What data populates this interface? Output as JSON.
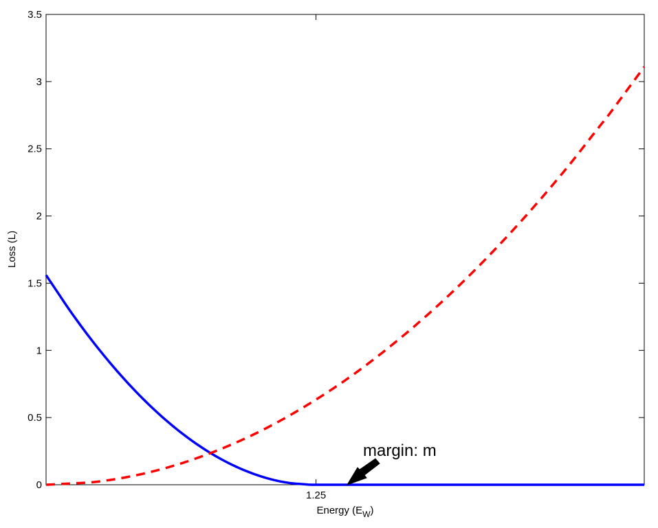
{
  "chart_data": {
    "type": "line",
    "title": "",
    "xlabel": "Energy (E",
    "xlabel_subscript": "W",
    "xlabel_close": ")",
    "ylabel": "Loss (L)",
    "xlim": [
      0,
      2.77
    ],
    "ylim": [
      0,
      3.5
    ],
    "xticks": [
      {
        "value": 1.25,
        "label": "1.25"
      }
    ],
    "yticks": [
      {
        "value": 0,
        "label": "0"
      },
      {
        "value": 0.5,
        "label": "0.5"
      },
      {
        "value": 1,
        "label": "1"
      },
      {
        "value": 1.5,
        "label": "1.5"
      },
      {
        "value": 2,
        "label": "2"
      },
      {
        "value": 2.5,
        "label": "2.5"
      },
      {
        "value": 3,
        "label": "3"
      },
      {
        "value": 3.5,
        "label": "3.5"
      }
    ],
    "grid": false,
    "series": [
      {
        "style": "solid",
        "color": "#0000ff",
        "x": [
          0,
          0.1,
          0.2,
          0.3,
          0.4,
          0.5,
          0.6,
          0.7,
          0.8,
          0.9,
          1.0,
          1.1,
          1.2,
          1.25,
          1.4,
          1.6,
          1.8,
          2.0,
          2.2,
          2.4,
          2.6,
          2.77
        ],
        "y": [
          1.56,
          1.32,
          1.1,
          0.9,
          0.72,
          0.56,
          0.42,
          0.3,
          0.2,
          0.12,
          0.06,
          0.02,
          0.003,
          0,
          0,
          0,
          0,
          0,
          0,
          0,
          0,
          0
        ]
      },
      {
        "style": "dashed",
        "color": "#ff0000",
        "x": [
          0,
          0.2,
          0.4,
          0.6,
          0.8,
          1.0,
          1.2,
          1.4,
          1.6,
          1.8,
          2.0,
          2.2,
          2.4,
          2.6,
          2.77
        ],
        "y": [
          0,
          0.016,
          0.065,
          0.146,
          0.26,
          0.405,
          0.584,
          0.794,
          1.038,
          1.313,
          1.621,
          1.962,
          2.335,
          2.74,
          3.11
        ]
      }
    ],
    "annotations": [
      {
        "text": "margin: m",
        "arrow_to": {
          "x": 1.25,
          "y": 0
        }
      }
    ]
  }
}
